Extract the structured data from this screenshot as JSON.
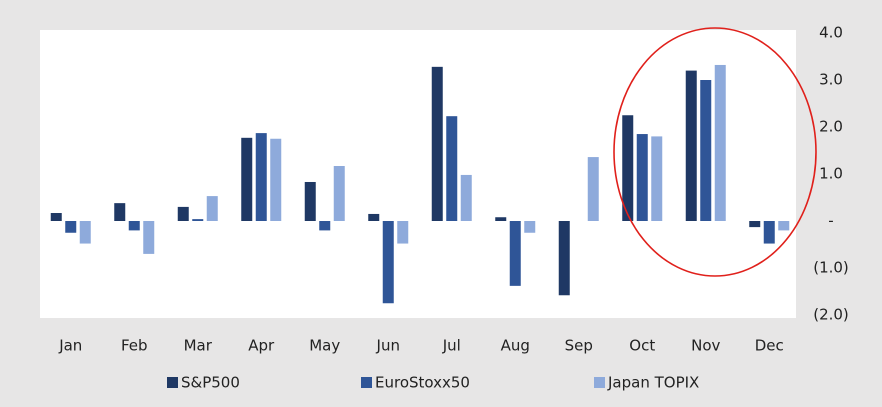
{
  "chart_data": {
    "type": "bar",
    "categories": [
      "Jan",
      "Feb",
      "Mar",
      "Apr",
      "May",
      "Jun",
      "Jul",
      "Aug",
      "Sep",
      "Oct",
      "Nov",
      "Dec"
    ],
    "series": [
      {
        "name": "S&P500",
        "color": "#1f3864",
        "values": [
          0.17,
          0.38,
          0.3,
          1.77,
          0.83,
          0.15,
          3.28,
          0.08,
          -1.58,
          2.25,
          3.2,
          -0.13
        ]
      },
      {
        "name": "EuroStoxx50",
        "color": "#2f5597",
        "values": [
          -0.25,
          -0.2,
          0.04,
          1.87,
          -0.2,
          -1.75,
          2.23,
          -1.38,
          0,
          1.85,
          3.0,
          -0.48
        ]
      },
      {
        "name": "Japan TOPIX",
        "color": "#8eaadb",
        "values": [
          -0.48,
          -0.7,
          0.53,
          1.75,
          1.17,
          -0.48,
          0.98,
          -0.25,
          1.36,
          1.8,
          3.32,
          -0.2
        ]
      }
    ],
    "ylim": [
      -2,
      4
    ],
    "yticks": [
      {
        "value": 4,
        "label": "4.0"
      },
      {
        "value": 3,
        "label": "3.0"
      },
      {
        "value": 2,
        "label": "2.0"
      },
      {
        "value": 1,
        "label": "1.0"
      },
      {
        "value": 0,
        "label": "-"
      },
      {
        "value": -1,
        "label": "(1.0)"
      },
      {
        "value": -2,
        "label": "(2.0)"
      }
    ],
    "grid": false,
    "legend": "bottom"
  }
}
